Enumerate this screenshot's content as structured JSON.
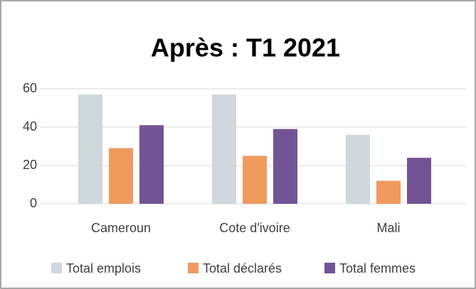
{
  "chart_data": {
    "type": "bar",
    "title": "Après : T1 2021",
    "categories": [
      "Cameroun",
      "Cote d'ivoire",
      "Mali"
    ],
    "series": [
      {
        "name": "Total emplois",
        "color": "#cfd8dc",
        "values": [
          57,
          57,
          36
        ]
      },
      {
        "name": "Total déclarés",
        "color": "#f09a5e",
        "values": [
          29,
          25,
          12
        ]
      },
      {
        "name": "Total femmes",
        "color": "#725496",
        "values": [
          41,
          39,
          24
        ]
      }
    ],
    "ylim": [
      0,
      60
    ],
    "yticks": [
      0,
      20,
      40,
      60
    ],
    "grid": true,
    "legend": "bottom"
  }
}
